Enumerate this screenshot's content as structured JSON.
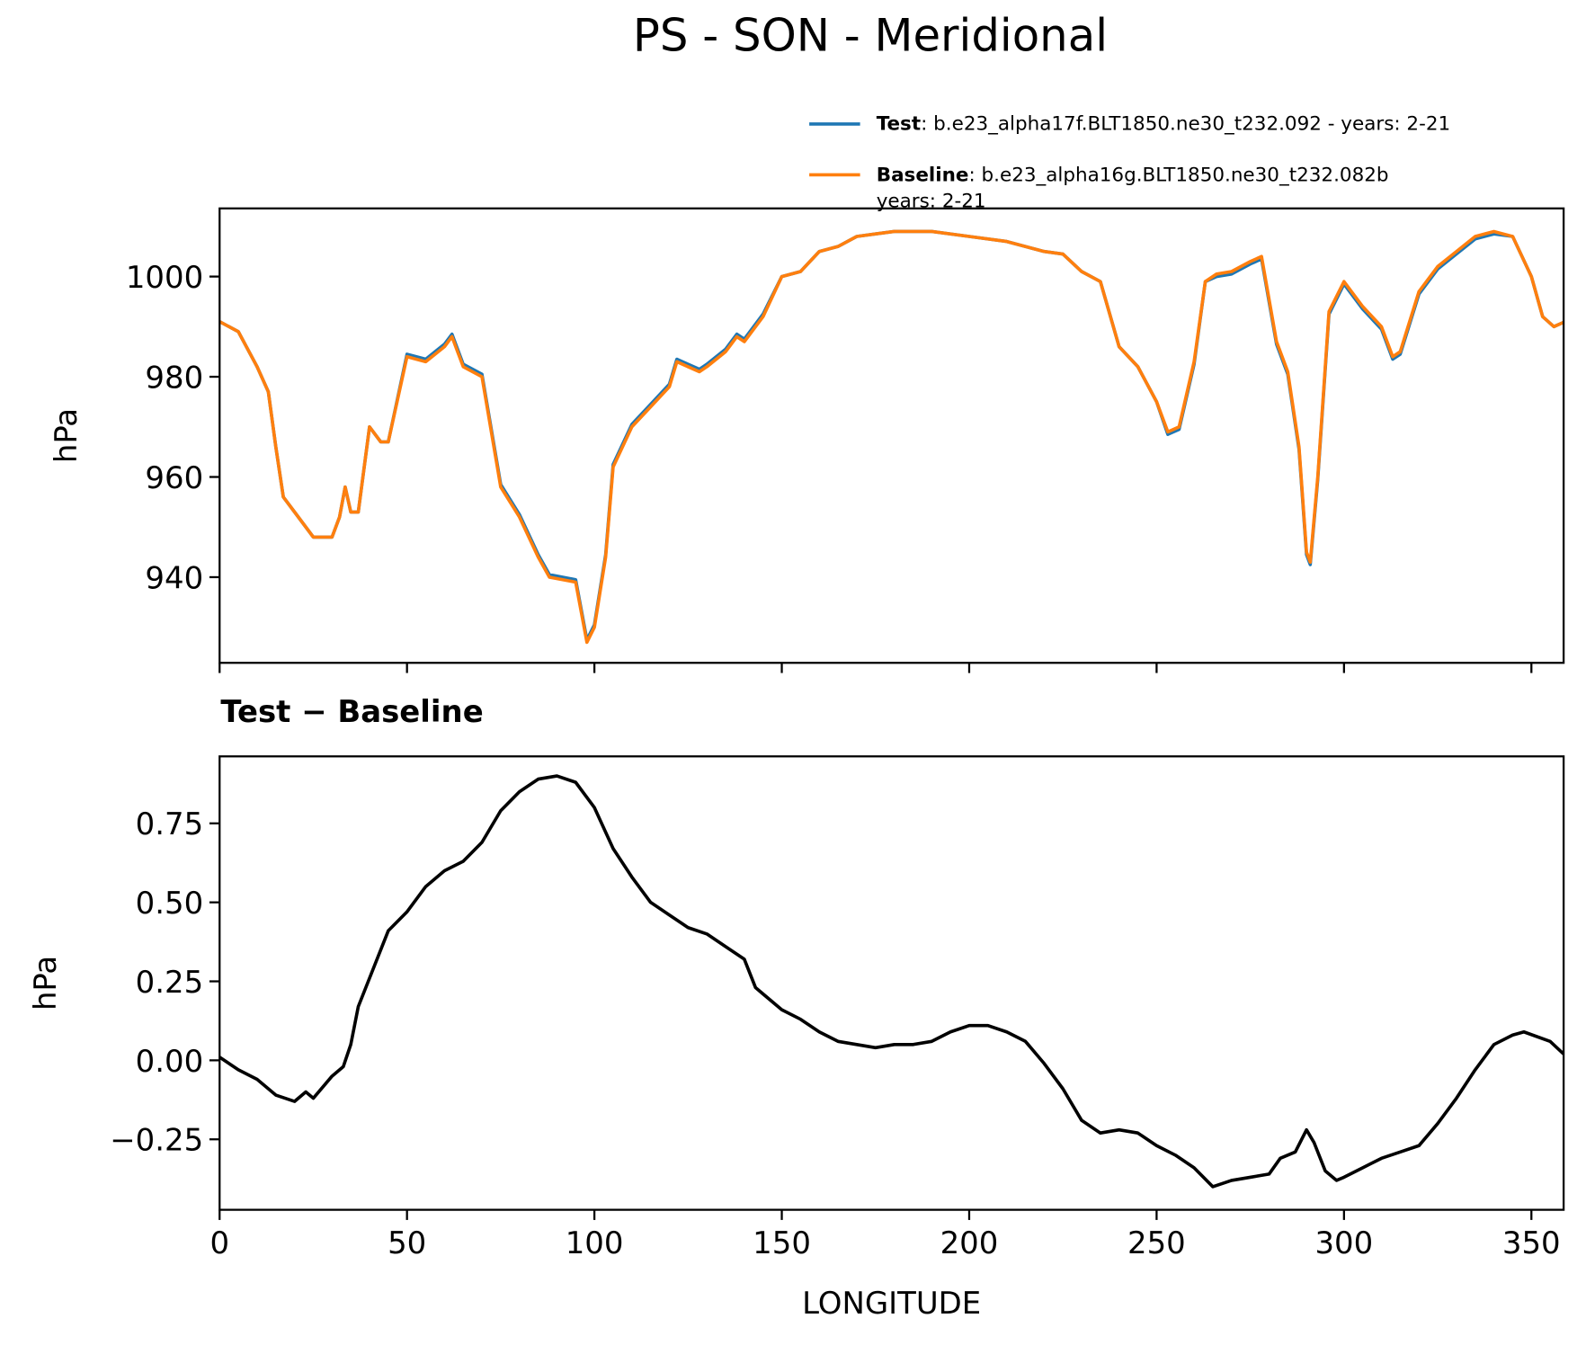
{
  "chart_data": [
    {
      "type": "line",
      "title": "PS - SON - Meridional",
      "ylabel": "hPa",
      "x": [
        0,
        5,
        10,
        13,
        15,
        17,
        20,
        25,
        28,
        30,
        32,
        33.5,
        35,
        37,
        40,
        43,
        45,
        50,
        55,
        60,
        62,
        65,
        70,
        75,
        80,
        85,
        88,
        95,
        98,
        100,
        103,
        105,
        110,
        115,
        120,
        122,
        125,
        128,
        130,
        135,
        138,
        140,
        145,
        150,
        155,
        160,
        165,
        170,
        175,
        180,
        190,
        200,
        210,
        220,
        225,
        230,
        235,
        240,
        245,
        250,
        253,
        256,
        260,
        263,
        266,
        270,
        275,
        278,
        282,
        285,
        288,
        290,
        291,
        293,
        296,
        300,
        305,
        310,
        313,
        315,
        320,
        325,
        330,
        335,
        340,
        345,
        350,
        353,
        356,
        359
      ],
      "series": [
        {
          "name": "Test",
          "label": ": b.e23_alpha17f.BLT1850.ne30_t232.092 - years: 2-21",
          "color": "#1f77b4",
          "values": [
            991,
            989,
            982,
            977,
            966,
            956,
            953,
            948,
            948,
            948,
            952,
            958,
            953,
            953,
            970,
            967,
            967,
            984.5,
            983.5,
            986.5,
            988.5,
            982.5,
            980.5,
            958.5,
            952.5,
            944.5,
            940.5,
            939.5,
            927.5,
            930.5,
            944.5,
            962.5,
            970.5,
            974.5,
            978.5,
            983.5,
            982.5,
            981.5,
            982.5,
            985.5,
            988.5,
            987.5,
            992.5,
            1000,
            1001,
            1005,
            1006,
            1008,
            1008.5,
            1009,
            1009,
            1008,
            1007,
            1005,
            1004.5,
            1001,
            999,
            986,
            982,
            975,
            968.5,
            969.5,
            982.5,
            999,
            1000,
            1000.5,
            1002.5,
            1003.5,
            986.5,
            980.5,
            965.5,
            944.5,
            942.5,
            959.5,
            992.5,
            998.5,
            993.5,
            989.5,
            983.5,
            984.5,
            996.5,
            1001.5,
            1004.5,
            1007.5,
            1008.5,
            1008,
            1000,
            992,
            990,
            991
          ]
        },
        {
          "name": "Baseline",
          "label_lines": [
            ": b.e23_alpha16g.BLT1850.ne30_t232.082b",
            "years: 2-21"
          ],
          "color": "#ff7f0e",
          "values": [
            991,
            989,
            982,
            977,
            966,
            956,
            953,
            948,
            948,
            948,
            952,
            958,
            953,
            953,
            970,
            967,
            967,
            984,
            983,
            986,
            988,
            982,
            980,
            958,
            952,
            944,
            940,
            939,
            927,
            930,
            944,
            962,
            970,
            974,
            978,
            983,
            982,
            981,
            982,
            985,
            988,
            987,
            992,
            1000,
            1001,
            1005,
            1006,
            1008,
            1008.5,
            1009,
            1009,
            1008,
            1007,
            1005,
            1004.5,
            1001,
            999,
            986,
            982,
            975,
            969,
            970,
            983,
            999,
            1000.5,
            1001,
            1003,
            1004,
            987,
            981,
            966,
            945,
            943,
            960,
            993,
            999,
            994,
            990,
            984,
            985,
            997,
            1002,
            1005,
            1008,
            1009,
            1008,
            1000,
            992,
            990,
            991
          ]
        }
      ],
      "xlim": [
        0,
        358.6
      ],
      "xticks": [
        0,
        50,
        100,
        150,
        200,
        250,
        300,
        350
      ],
      "show_xtick_labels": false,
      "ylim": [
        922.9,
        1013.6
      ],
      "yticks": [
        940,
        960,
        980,
        1000
      ]
    },
    {
      "type": "line",
      "title": "Test − Baseline",
      "xlabel": "LONGITUDE",
      "ylabel": "hPa",
      "color": "#000000",
      "x": [
        0,
        5,
        10,
        15,
        20,
        23,
        25,
        30,
        33,
        35,
        37,
        40,
        45,
        50,
        55,
        60,
        65,
        70,
        75,
        80,
        85,
        90,
        95,
        100,
        105,
        110,
        115,
        120,
        125,
        130,
        135,
        140,
        143,
        145,
        150,
        155,
        160,
        165,
        170,
        175,
        180,
        185,
        190,
        195,
        200,
        205,
        210,
        215,
        220,
        225,
        230,
        235,
        240,
        245,
        250,
        255,
        260,
        265,
        270,
        275,
        280,
        283,
        287,
        290,
        292,
        295,
        298,
        300,
        305,
        310,
        315,
        320,
        325,
        330,
        335,
        340,
        345,
        348,
        355,
        358.6
      ],
      "values": [
        0.01,
        -0.03,
        -0.06,
        -0.11,
        -0.13,
        -0.1,
        -0.12,
        -0.05,
        -0.02,
        0.05,
        0.17,
        0.26,
        0.41,
        0.47,
        0.55,
        0.6,
        0.63,
        0.69,
        0.79,
        0.85,
        0.89,
        0.9,
        0.88,
        0.8,
        0.67,
        0.58,
        0.5,
        0.46,
        0.42,
        0.4,
        0.36,
        0.32,
        0.23,
        0.21,
        0.16,
        0.13,
        0.09,
        0.06,
        0.05,
        0.04,
        0.05,
        0.05,
        0.06,
        0.09,
        0.11,
        0.11,
        0.09,
        0.06,
        -0.01,
        -0.09,
        -0.19,
        -0.23,
        -0.22,
        -0.23,
        -0.27,
        -0.3,
        -0.34,
        -0.4,
        -0.38,
        -0.37,
        -0.36,
        -0.31,
        -0.29,
        -0.22,
        -0.26,
        -0.35,
        -0.38,
        -0.37,
        -0.34,
        -0.31,
        -0.29,
        -0.27,
        -0.2,
        -0.12,
        -0.03,
        0.05,
        0.08,
        0.09,
        0.06,
        0.02
      ],
      "xlim": [
        0,
        358.6
      ],
      "xticks": [
        0,
        50,
        100,
        150,
        200,
        250,
        300,
        350
      ],
      "show_xtick_labels": true,
      "ylim": [
        -0.473,
        0.962
      ],
      "yticks": [
        {
          "value": -0.25,
          "label": "−0.25"
        },
        {
          "value": 0,
          "label": "0.00"
        },
        {
          "value": 0.25,
          "label": "0.25"
        },
        {
          "value": 0.5,
          "label": "0.50"
        },
        {
          "value": 0.75,
          "label": "0.75"
        }
      ]
    }
  ]
}
